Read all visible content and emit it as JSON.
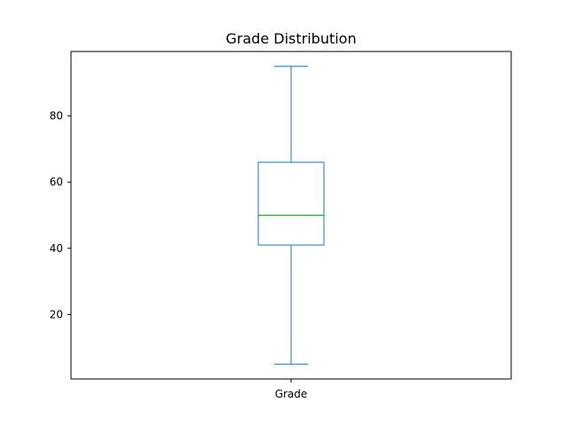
{
  "chart_data": {
    "type": "box",
    "title": "Grade Distribution",
    "xlabel": "",
    "ylabel": "",
    "categories": [
      "Grade"
    ],
    "boxes": [
      {
        "category": "Grade",
        "whisker_low": 5,
        "q1": 41,
        "median": 50,
        "q3": 66,
        "whisker_high": 95
      }
    ],
    "yticks": [
      20,
      40,
      60,
      80
    ],
    "ytick_labels": [
      "20",
      "40",
      "60",
      "80"
    ],
    "ylim": [
      0.5,
      99.5
    ],
    "grid": false,
    "legend": "none",
    "colors": {
      "box": "#1f77b4",
      "median": "#2ca02c",
      "axes": "#000000"
    }
  }
}
